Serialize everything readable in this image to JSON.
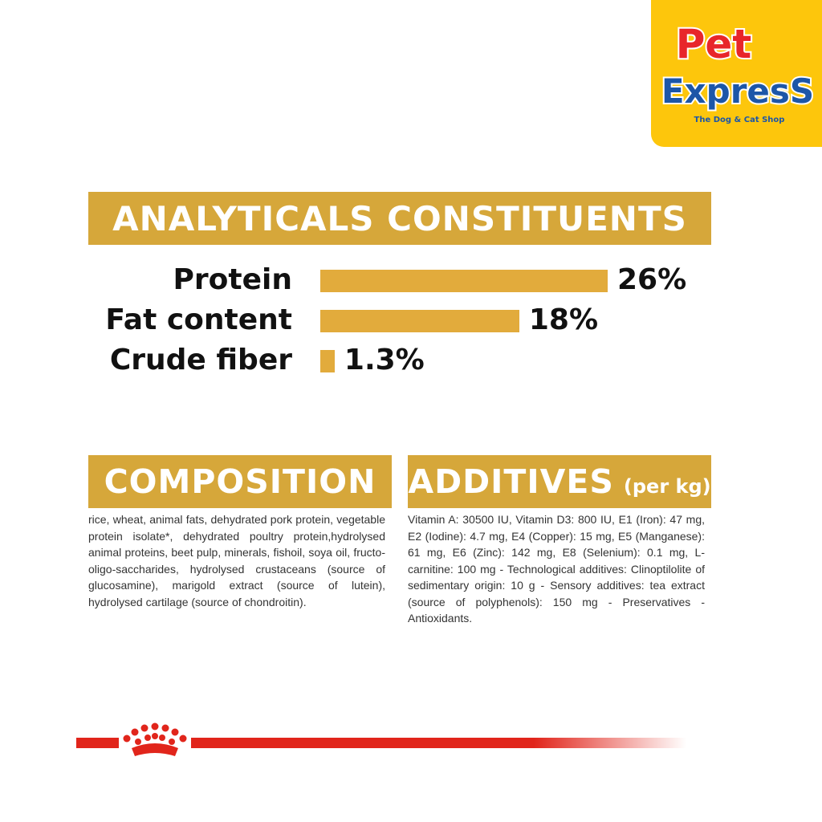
{
  "brand": {
    "logo_text_line1": "Pet",
    "logo_text_line2": "ExpresS",
    "tagline": "The Dog & Cat Shop",
    "colors": {
      "logo_bg": "#fdc60c",
      "logo_red": "#e8262a",
      "logo_blue": "#1c56a8",
      "banner": "#d6a73a",
      "bar": "#e2ab3c",
      "footer_red": "#e1251b"
    }
  },
  "analytics": {
    "title": "ANALYTICALS CONSTITUENTS",
    "rows": [
      {
        "label": "Protein",
        "value_text": "26%",
        "value": 26
      },
      {
        "label": "Fat content",
        "value_text": "18%",
        "value": 18
      },
      {
        "label": "Crude fiber",
        "value_text": "1.3%",
        "value": 1.3
      }
    ]
  },
  "composition": {
    "title": "COMPOSITION",
    "text": "rice, wheat, animal fats, dehydrated pork protein, vegetable protein isolate*, dehydrated poultry protein,hydrolysed animal proteins, beet pulp, minerals, fishoil, soya oil, fructo-oligo-saccharides, hydrolysed crustaceans (source of glucosamine), marigold extract (source of lutein), hydrolysed cartilage (source of chondroitin)."
  },
  "additives": {
    "title": "ADDITIVES",
    "title_suffix": "(per kg)",
    "text": "Vitamin A: 30500 IU, Vitamin D3: 800 IU, E1 (Iron): 47 mg, E2 (Iodine): 4.7 mg, E4 (Copper): 15 mg, E5 (Manganese): 61 mg, E6 (Zinc): 142 mg, E8 (Selenium): 0.1 mg, L-carnitine: 100 mg - Technological additives: Clinoptilolite of sedimentary origin: 10 g - Sensory additives: tea extract (source of polyphenols): 150 mg - Preservatives - Antioxidants."
  },
  "footer": {
    "icon": "crown-icon"
  }
}
